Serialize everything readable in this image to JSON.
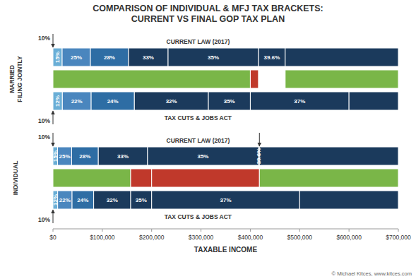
{
  "chart_data": {
    "type": "range",
    "orientation": "horizontal",
    "title": "COMPARISON OF INDIVIDUAL & MFJ TAX BRACKETS:\nCURRENT VS FINAL GOP TAX PLAN",
    "xlabel": "TAXABLE INCOME",
    "xlim": [
      0,
      700000
    ],
    "xticks": [
      {
        "value": 0,
        "label": "$0"
      },
      {
        "value": 100000,
        "label": "$100,000"
      },
      {
        "value": 200000,
        "label": "$200,000"
      },
      {
        "value": 300000,
        "label": "$300,000"
      },
      {
        "value": 400000,
        "label": "$400,000"
      },
      {
        "value": 500000,
        "label": "$500,000"
      },
      {
        "value": 600000,
        "label": "$600,000"
      },
      {
        "value": 700000,
        "label": "$700,000"
      }
    ],
    "tick_labels": "x",
    "grid": false,
    "groups": [
      {
        "label": "MARRIED\nFILING JOINTLY",
        "rows": [
          {
            "label": "CURRENT LAW (2017)",
            "label_position": "above",
            "arrow_label": "10%",
            "arrows": [
              0
            ],
            "starts": [
              0,
              18650,
              75900,
              153100,
              233350,
              416700,
              470700
            ],
            "ends": [
              18650,
              75900,
              153100,
              233350,
              416700,
              470700,
              700000
            ],
            "rate_labels": [
              "15%",
              "25%",
              "28%",
              "33%",
              "35%",
              "39.6%",
              null
            ],
            "colors": [
              "#6aaed6",
              "#4a86be",
              "#2e6da4",
              "#1b3a5c",
              "#1b3a5c",
              "#1b3a5c",
              "#1b3a5c"
            ]
          },
          {
            "starts": [
              0,
              400000,
              416700,
              470700
            ],
            "ends": [
              400000,
              416700,
              470700,
              700000
            ],
            "colors": [
              "#7ab648",
              "#c0392b",
              "#ffffff",
              "#7ab648"
            ]
          },
          {
            "label": "TAX CUTS & JOBS ACT",
            "label_position": "below",
            "arrow_label": "10%",
            "arrows": [
              0
            ],
            "starts": [
              0,
              19050,
              77400,
              165000,
              315000,
              400000,
              600000
            ],
            "ends": [
              19050,
              77400,
              165000,
              315000,
              400000,
              600000,
              700000
            ],
            "rate_labels": [
              "12%",
              "22%",
              "24%",
              "32%",
              "35%",
              "37%",
              null
            ],
            "colors": [
              "#6aaed6",
              "#4a86be",
              "#2e6da4",
              "#1b3a5c",
              "#1b3a5c",
              "#1b3a5c",
              "#1b3a5c"
            ]
          }
        ]
      },
      {
        "label": "INDIVIDUAL",
        "rows": [
          {
            "label": "CURRENT LAW (2017)",
            "label_position": "above",
            "arrow_label": "10%",
            "arrows": [
              0,
              418400
            ],
            "starts": [
              0,
              9325,
              37950,
              91900,
              191650,
              416700,
              418400
            ],
            "ends": [
              9325,
              37950,
              91900,
              191650,
              416700,
              418400,
              700000
            ],
            "rate_labels": [
              "15%",
              "25%",
              "28%",
              "33%",
              "35%",
              "39.6%",
              null
            ],
            "colors": [
              "#6aaed6",
              "#4a86be",
              "#2e6da4",
              "#1b3a5c",
              "#1b3a5c",
              "#1b3a5c",
              "#1b3a5c"
            ]
          },
          {
            "starts": [
              0,
              157500,
              200000,
              418400
            ],
            "ends": [
              157500,
              200000,
              418400,
              700000
            ],
            "colors": [
              "#7ab648",
              "#c0392b",
              "#c0392b",
              "#7ab648"
            ]
          },
          {
            "label": "TAX CUTS & JOBS ACT",
            "label_position": "below",
            "arrow_label": "10%",
            "arrows": [
              0
            ],
            "starts": [
              0,
              9525,
              38700,
              82500,
              157500,
              200000,
              500000
            ],
            "ends": [
              9525,
              38700,
              82500,
              157500,
              200000,
              500000,
              700000
            ],
            "rate_labels": [
              "12%",
              "22%",
              "24%",
              "32%",
              "35%",
              "37%",
              null
            ],
            "colors": [
              "#6aaed6",
              "#4a86be",
              "#2e6da4",
              "#1b3a5c",
              "#1b3a5c",
              "#1b3a5c",
              "#1b3a5c"
            ]
          }
        ]
      }
    ],
    "source": "© Michael Kitces, www.kitces.com"
  }
}
